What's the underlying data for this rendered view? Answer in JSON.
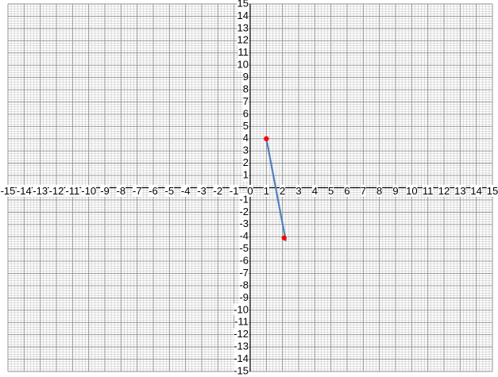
{
  "chart_data": {
    "type": "line",
    "title": "",
    "xlabel": "",
    "ylabel": "",
    "xlim": [
      -15,
      15
    ],
    "ylim": [
      -15,
      15
    ],
    "grid": true,
    "minor_grid_per_unit": 5,
    "x_ticks": [
      -15,
      -14,
      -13,
      -12,
      -11,
      -10,
      -9,
      -8,
      -7,
      -6,
      -5,
      -4,
      -3,
      -2,
      -1,
      0,
      1,
      2,
      3,
      4,
      5,
      6,
      7,
      8,
      9,
      10,
      11,
      12,
      13,
      14,
      15
    ],
    "y_ticks": [
      15,
      14,
      13,
      12,
      11,
      10,
      9,
      8,
      7,
      6,
      5,
      4,
      3,
      2,
      1,
      -1,
      -2,
      -3,
      -4,
      -5,
      -6,
      -7,
      -8,
      -9,
      -10,
      -11,
      -12,
      -13,
      -14,
      -15
    ],
    "series": [
      {
        "line": {
          "x": [
            1,
            2.2
          ],
          "y": [
            4,
            -4.3
          ]
        },
        "points": [
          {
            "x": 1,
            "y": 4
          },
          {
            "x": 2.1,
            "y": -4.1
          }
        ]
      }
    ],
    "colors": {
      "line": "#4f81bd",
      "points": "#ff0000",
      "grid_minor": "#c0c0c0",
      "grid_major": "#8c8c8c",
      "axis": "#000000"
    }
  }
}
